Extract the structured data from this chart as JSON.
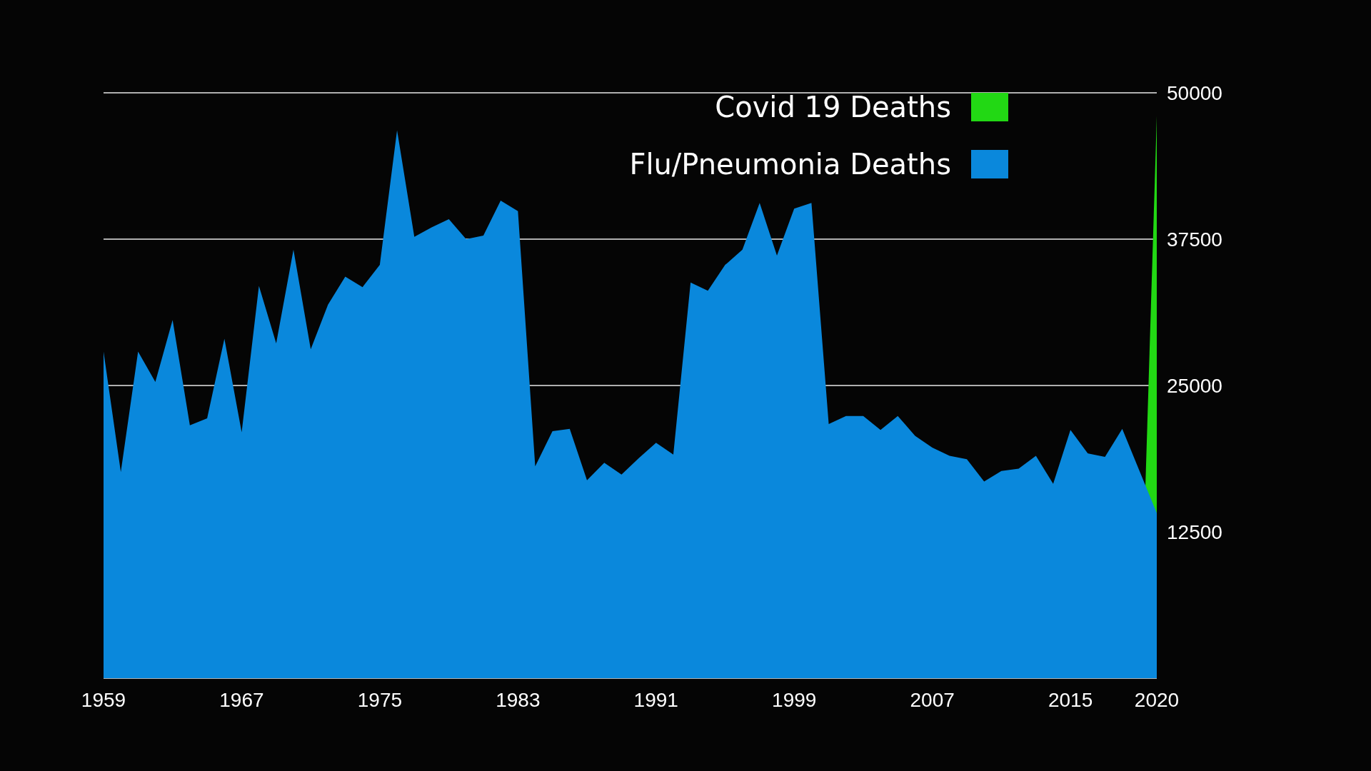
{
  "chart_data": {
    "type": "area",
    "x": [
      1959,
      1960,
      1961,
      1962,
      1963,
      1964,
      1965,
      1966,
      1967,
      1968,
      1969,
      1970,
      1971,
      1972,
      1973,
      1974,
      1975,
      1976,
      1977,
      1978,
      1979,
      1980,
      1981,
      1982,
      1983,
      1984,
      1985,
      1986,
      1987,
      1988,
      1989,
      1990,
      1991,
      1992,
      1993,
      1994,
      1995,
      1996,
      1997,
      1998,
      1999,
      2000,
      2001,
      2002,
      2003,
      2004,
      2005,
      2006,
      2007,
      2008,
      2009,
      2010,
      2011,
      2012,
      2013,
      2014,
      2015,
      2016,
      2017,
      2018,
      2019,
      2020
    ],
    "series": [
      {
        "name": "Covid 19 Deaths",
        "color": "#22d814",
        "values": [
          null,
          null,
          null,
          null,
          null,
          null,
          null,
          null,
          null,
          null,
          null,
          null,
          null,
          null,
          null,
          null,
          null,
          null,
          null,
          null,
          null,
          null,
          null,
          null,
          null,
          null,
          null,
          null,
          null,
          null,
          null,
          null,
          null,
          null,
          null,
          null,
          null,
          null,
          null,
          null,
          null,
          null,
          null,
          null,
          null,
          null,
          null,
          null,
          null,
          null,
          null,
          null,
          null,
          null,
          null,
          null,
          null,
          null,
          null,
          null,
          0,
          48000
        ]
      },
      {
        "name": "Flu/Pneumonia Deaths",
        "color": "#0a88dc",
        "values": [
          27900,
          17600,
          27900,
          25300,
          30600,
          21600,
          22200,
          29000,
          21000,
          33500,
          28600,
          36600,
          28100,
          31900,
          34300,
          33400,
          35300,
          46800,
          37700,
          38500,
          39200,
          37500,
          37800,
          40800,
          39900,
          18100,
          21100,
          21300,
          16900,
          18400,
          17400,
          18800,
          20100,
          19100,
          33800,
          33100,
          35300,
          36600,
          40600,
          36100,
          40100,
          40600,
          21700,
          22400,
          22400,
          21200,
          22400,
          20700,
          19700,
          19000,
          18700,
          16800,
          17700,
          17900,
          19000,
          16600,
          21200,
          19200,
          18900,
          21300,
          17700,
          14100
        ]
      }
    ],
    "xlim": [
      1959,
      2020
    ],
    "xticks": [
      1959,
      1967,
      1975,
      1983,
      1991,
      1999,
      2007,
      2015,
      2020
    ],
    "ylim": [
      0,
      50000
    ],
    "yticks": [
      {
        "value": 0,
        "label": null
      },
      12500,
      25000,
      37500,
      50000
    ],
    "grid": "y",
    "legend": "top right"
  }
}
